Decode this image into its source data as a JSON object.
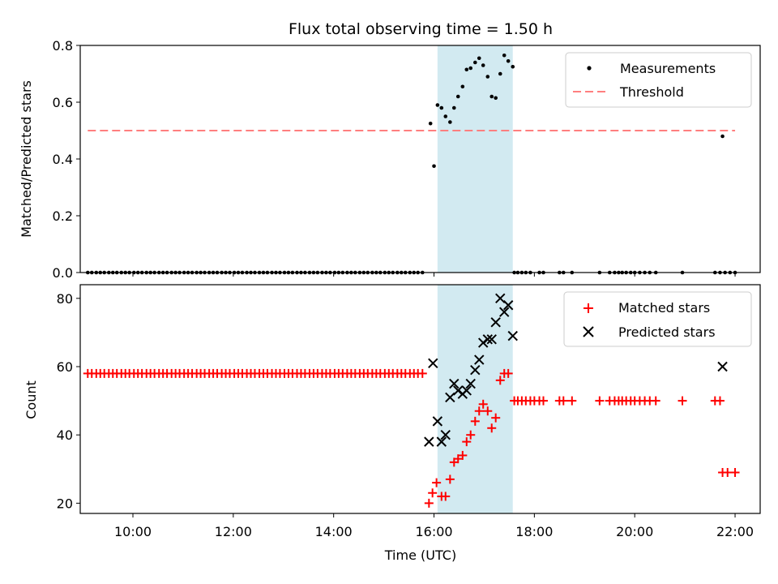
{
  "chart_data": {
    "type": "scatter",
    "title": "Flux total observing time = 1.50 h",
    "xlabel": "Time (UTC)",
    "x_range_hours": [
      8.95,
      22.5
    ],
    "x_ticks": [
      "10:00",
      "12:00",
      "14:00",
      "16:00",
      "18:00",
      "20:00",
      "22:00"
    ],
    "highlight_span_hours": [
      16.07,
      17.57
    ],
    "colors": {
      "measurements": "#000000",
      "threshold": "#ff7f7f",
      "matched": "#ff0000",
      "predicted": "#000000",
      "highlight": "#add8e6"
    },
    "top": {
      "ylabel": "Matched/Predicted stars",
      "ylim": [
        0,
        0.8
      ],
      "yticks": [
        "0.0",
        "0.2",
        "0.4",
        "0.6",
        "0.8"
      ],
      "legend": [
        "Measurements",
        "Threshold"
      ],
      "threshold": {
        "value": 0.5,
        "x_range": [
          9.1,
          22.0
        ]
      },
      "zero_points_hours": [
        9.1,
        9.18,
        9.27,
        9.35,
        9.43,
        9.52,
        9.6,
        9.68,
        9.77,
        9.85,
        9.93,
        10.02,
        10.1,
        10.18,
        10.27,
        10.35,
        10.43,
        10.52,
        10.6,
        10.68,
        10.77,
        10.85,
        10.93,
        11.02,
        11.1,
        11.18,
        11.27,
        11.35,
        11.43,
        11.52,
        11.6,
        11.68,
        11.77,
        11.85,
        11.93,
        12.02,
        12.1,
        12.18,
        12.27,
        12.35,
        12.43,
        12.52,
        12.6,
        12.68,
        12.77,
        12.85,
        12.93,
        13.02,
        13.1,
        13.18,
        13.27,
        13.35,
        13.43,
        13.52,
        13.6,
        13.68,
        13.77,
        13.85,
        13.93,
        14.02,
        14.1,
        14.18,
        14.27,
        14.35,
        14.43,
        14.52,
        14.6,
        14.68,
        14.77,
        14.85,
        14.93,
        15.02,
        15.1,
        15.18,
        15.27,
        15.35,
        15.43,
        15.52,
        15.6,
        15.68,
        15.77,
        17.6,
        17.67,
        17.75,
        17.83,
        17.92,
        18.1,
        18.18,
        18.5,
        18.58,
        18.75,
        19.3,
        19.5,
        19.6,
        19.68,
        19.75,
        19.83,
        19.92,
        20.0,
        20.1,
        20.2,
        20.3,
        20.42,
        20.95,
        21.6,
        21.7,
        21.8,
        21.9,
        22.0
      ],
      "points": [
        {
          "x": 15.93,
          "y": 0.525
        },
        {
          "x": 16.0,
          "y": 0.375
        },
        {
          "x": 16.07,
          "y": 0.59
        },
        {
          "x": 16.15,
          "y": 0.58
        },
        {
          "x": 16.23,
          "y": 0.55
        },
        {
          "x": 16.32,
          "y": 0.53
        },
        {
          "x": 16.4,
          "y": 0.58
        },
        {
          "x": 16.48,
          "y": 0.62
        },
        {
          "x": 16.57,
          "y": 0.655
        },
        {
          "x": 16.65,
          "y": 0.715
        },
        {
          "x": 16.73,
          "y": 0.72
        },
        {
          "x": 16.82,
          "y": 0.74
        },
        {
          "x": 16.9,
          "y": 0.755
        },
        {
          "x": 16.98,
          "y": 0.73
        },
        {
          "x": 17.07,
          "y": 0.69
        },
        {
          "x": 17.15,
          "y": 0.62
        },
        {
          "x": 17.23,
          "y": 0.615
        },
        {
          "x": 17.32,
          "y": 0.7
        },
        {
          "x": 17.4,
          "y": 0.765
        },
        {
          "x": 17.48,
          "y": 0.745
        },
        {
          "x": 17.57,
          "y": 0.725
        },
        {
          "x": 21.75,
          "y": 0.48
        }
      ]
    },
    "bottom": {
      "ylabel": "Count",
      "ylim": [
        17,
        84
      ],
      "yticks": [
        "20",
        "40",
        "60",
        "80"
      ],
      "legend": [
        "Matched stars",
        "Predicted stars"
      ],
      "matched_constant": [
        {
          "y": 58,
          "x": [
            9.1,
            9.18,
            9.27,
            9.35,
            9.43,
            9.52,
            9.6,
            9.68,
            9.77,
            9.85,
            9.93,
            10.02,
            10.1,
            10.18,
            10.27,
            10.35,
            10.43,
            10.52,
            10.6,
            10.68,
            10.77,
            10.85,
            10.93,
            11.02,
            11.1,
            11.18,
            11.27,
            11.35,
            11.43,
            11.52,
            11.6,
            11.68,
            11.77,
            11.85,
            11.93,
            12.02,
            12.1,
            12.18,
            12.27,
            12.35,
            12.43,
            12.52,
            12.6,
            12.68,
            12.77,
            12.85,
            12.93,
            13.02,
            13.1,
            13.18,
            13.27,
            13.35,
            13.43,
            13.52,
            13.6,
            13.68,
            13.77,
            13.85,
            13.93,
            14.02,
            14.1,
            14.18,
            14.27,
            14.35,
            14.43,
            14.52,
            14.6,
            14.68,
            14.77,
            14.85,
            14.93,
            15.02,
            15.1,
            15.18,
            15.27,
            15.35,
            15.43,
            15.52,
            15.6,
            15.68,
            15.77
          ]
        },
        {
          "y": 50,
          "x": [
            17.6,
            17.67,
            17.75,
            17.83,
            17.92,
            18.0,
            18.1,
            18.18,
            18.5,
            18.58,
            18.75,
            19.3,
            19.5,
            19.6,
            19.68,
            19.75,
            19.83,
            19.92,
            20.0,
            20.1,
            20.2,
            20.3,
            20.42,
            20.95,
            21.6,
            21.7
          ]
        },
        {
          "y": 29,
          "x": [
            21.75,
            21.85,
            22.0
          ]
        }
      ],
      "matched_points": [
        {
          "x": 15.9,
          "y": 20
        },
        {
          "x": 15.97,
          "y": 23
        },
        {
          "x": 16.05,
          "y": 26
        },
        {
          "x": 16.15,
          "y": 22
        },
        {
          "x": 16.23,
          "y": 22
        },
        {
          "x": 16.32,
          "y": 27
        },
        {
          "x": 16.4,
          "y": 32
        },
        {
          "x": 16.48,
          "y": 33
        },
        {
          "x": 16.57,
          "y": 34
        },
        {
          "x": 16.65,
          "y": 38
        },
        {
          "x": 16.73,
          "y": 40
        },
        {
          "x": 16.82,
          "y": 44
        },
        {
          "x": 16.9,
          "y": 47
        },
        {
          "x": 16.98,
          "y": 49
        },
        {
          "x": 17.07,
          "y": 47
        },
        {
          "x": 17.15,
          "y": 42
        },
        {
          "x": 17.23,
          "y": 45
        },
        {
          "x": 17.32,
          "y": 56
        },
        {
          "x": 17.4,
          "y": 58
        },
        {
          "x": 17.48,
          "y": 58
        }
      ],
      "predicted_points": [
        {
          "x": 15.9,
          "y": 38
        },
        {
          "x": 15.98,
          "y": 61
        },
        {
          "x": 16.07,
          "y": 44
        },
        {
          "x": 16.15,
          "y": 38
        },
        {
          "x": 16.23,
          "y": 40
        },
        {
          "x": 16.32,
          "y": 51
        },
        {
          "x": 16.4,
          "y": 55
        },
        {
          "x": 16.48,
          "y": 53
        },
        {
          "x": 16.57,
          "y": 52
        },
        {
          "x": 16.65,
          "y": 53
        },
        {
          "x": 16.73,
          "y": 55
        },
        {
          "x": 16.82,
          "y": 59
        },
        {
          "x": 16.9,
          "y": 62
        },
        {
          "x": 16.98,
          "y": 67
        },
        {
          "x": 17.07,
          "y": 68
        },
        {
          "x": 17.15,
          "y": 68
        },
        {
          "x": 17.23,
          "y": 73
        },
        {
          "x": 17.32,
          "y": 80
        },
        {
          "x": 17.4,
          "y": 76
        },
        {
          "x": 17.48,
          "y": 78
        },
        {
          "x": 17.57,
          "y": 69
        },
        {
          "x": 21.75,
          "y": 60
        }
      ]
    }
  }
}
